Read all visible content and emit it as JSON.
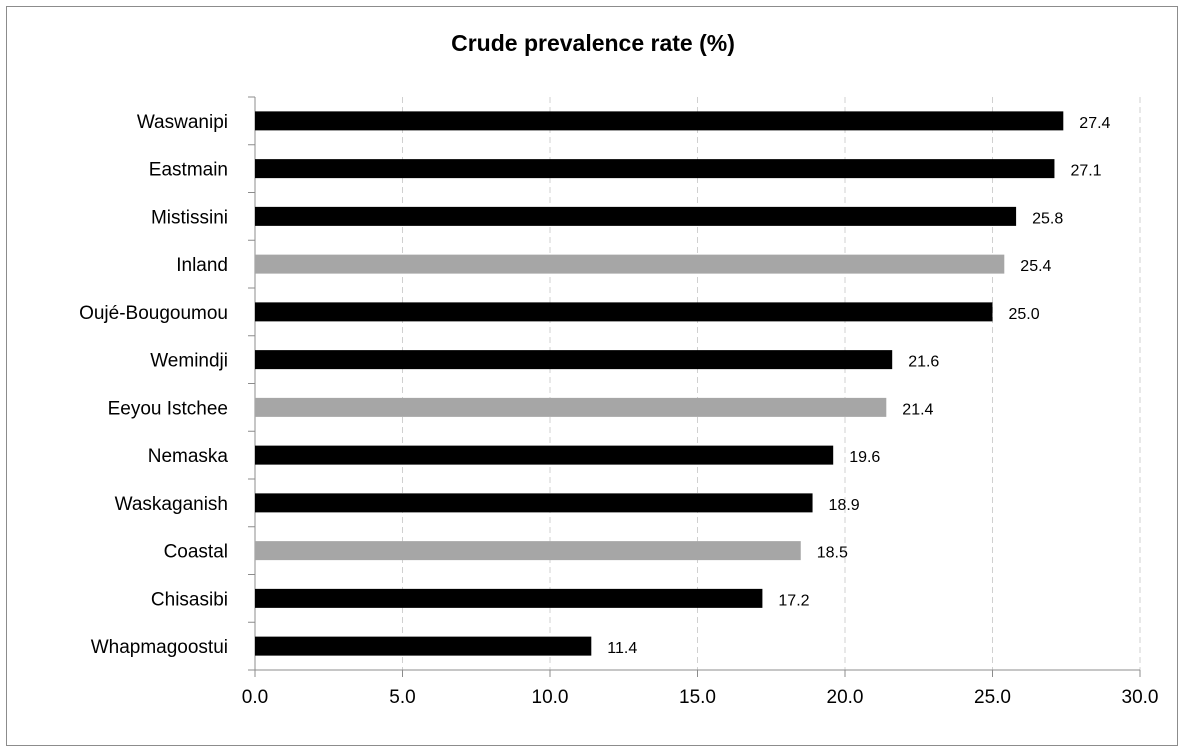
{
  "chart_data": {
    "type": "bar",
    "orientation": "horizontal",
    "title": "Crude prevalence rate (%)",
    "categories": [
      "Waswanipi",
      "Eastmain",
      "Mistissini",
      "Inland",
      "Oujé-Bougoumou",
      "Wemindji",
      "Eeyou Istchee",
      "Nemaska",
      "Waskaganish",
      "Coastal",
      "Chisasibi",
      "Whapmagoostui"
    ],
    "values": [
      27.4,
      27.1,
      25.8,
      25.4,
      25.0,
      21.6,
      21.4,
      19.6,
      18.9,
      18.5,
      17.2,
      11.4
    ],
    "value_labels": [
      "27.4",
      "27.1",
      "25.8",
      "25.4",
      "25.0",
      "21.6",
      "21.4",
      "19.6",
      "18.9",
      "18.5",
      "17.2",
      "11.4"
    ],
    "bar_colors": [
      "#000000",
      "#000000",
      "#000000",
      "#a6a6a6",
      "#000000",
      "#000000",
      "#a6a6a6",
      "#000000",
      "#000000",
      "#a6a6a6",
      "#000000",
      "#000000"
    ],
    "xlim": [
      0,
      30
    ],
    "x_ticks": [
      0,
      5,
      10,
      15,
      20,
      25,
      30
    ],
    "x_tick_labels": [
      "0.0",
      "5.0",
      "10.0",
      "15.0",
      "20.0",
      "25.0",
      "30.0"
    ],
    "xlabel": "",
    "ylabel": "",
    "grid": "vertical dashed",
    "legend": "none"
  }
}
